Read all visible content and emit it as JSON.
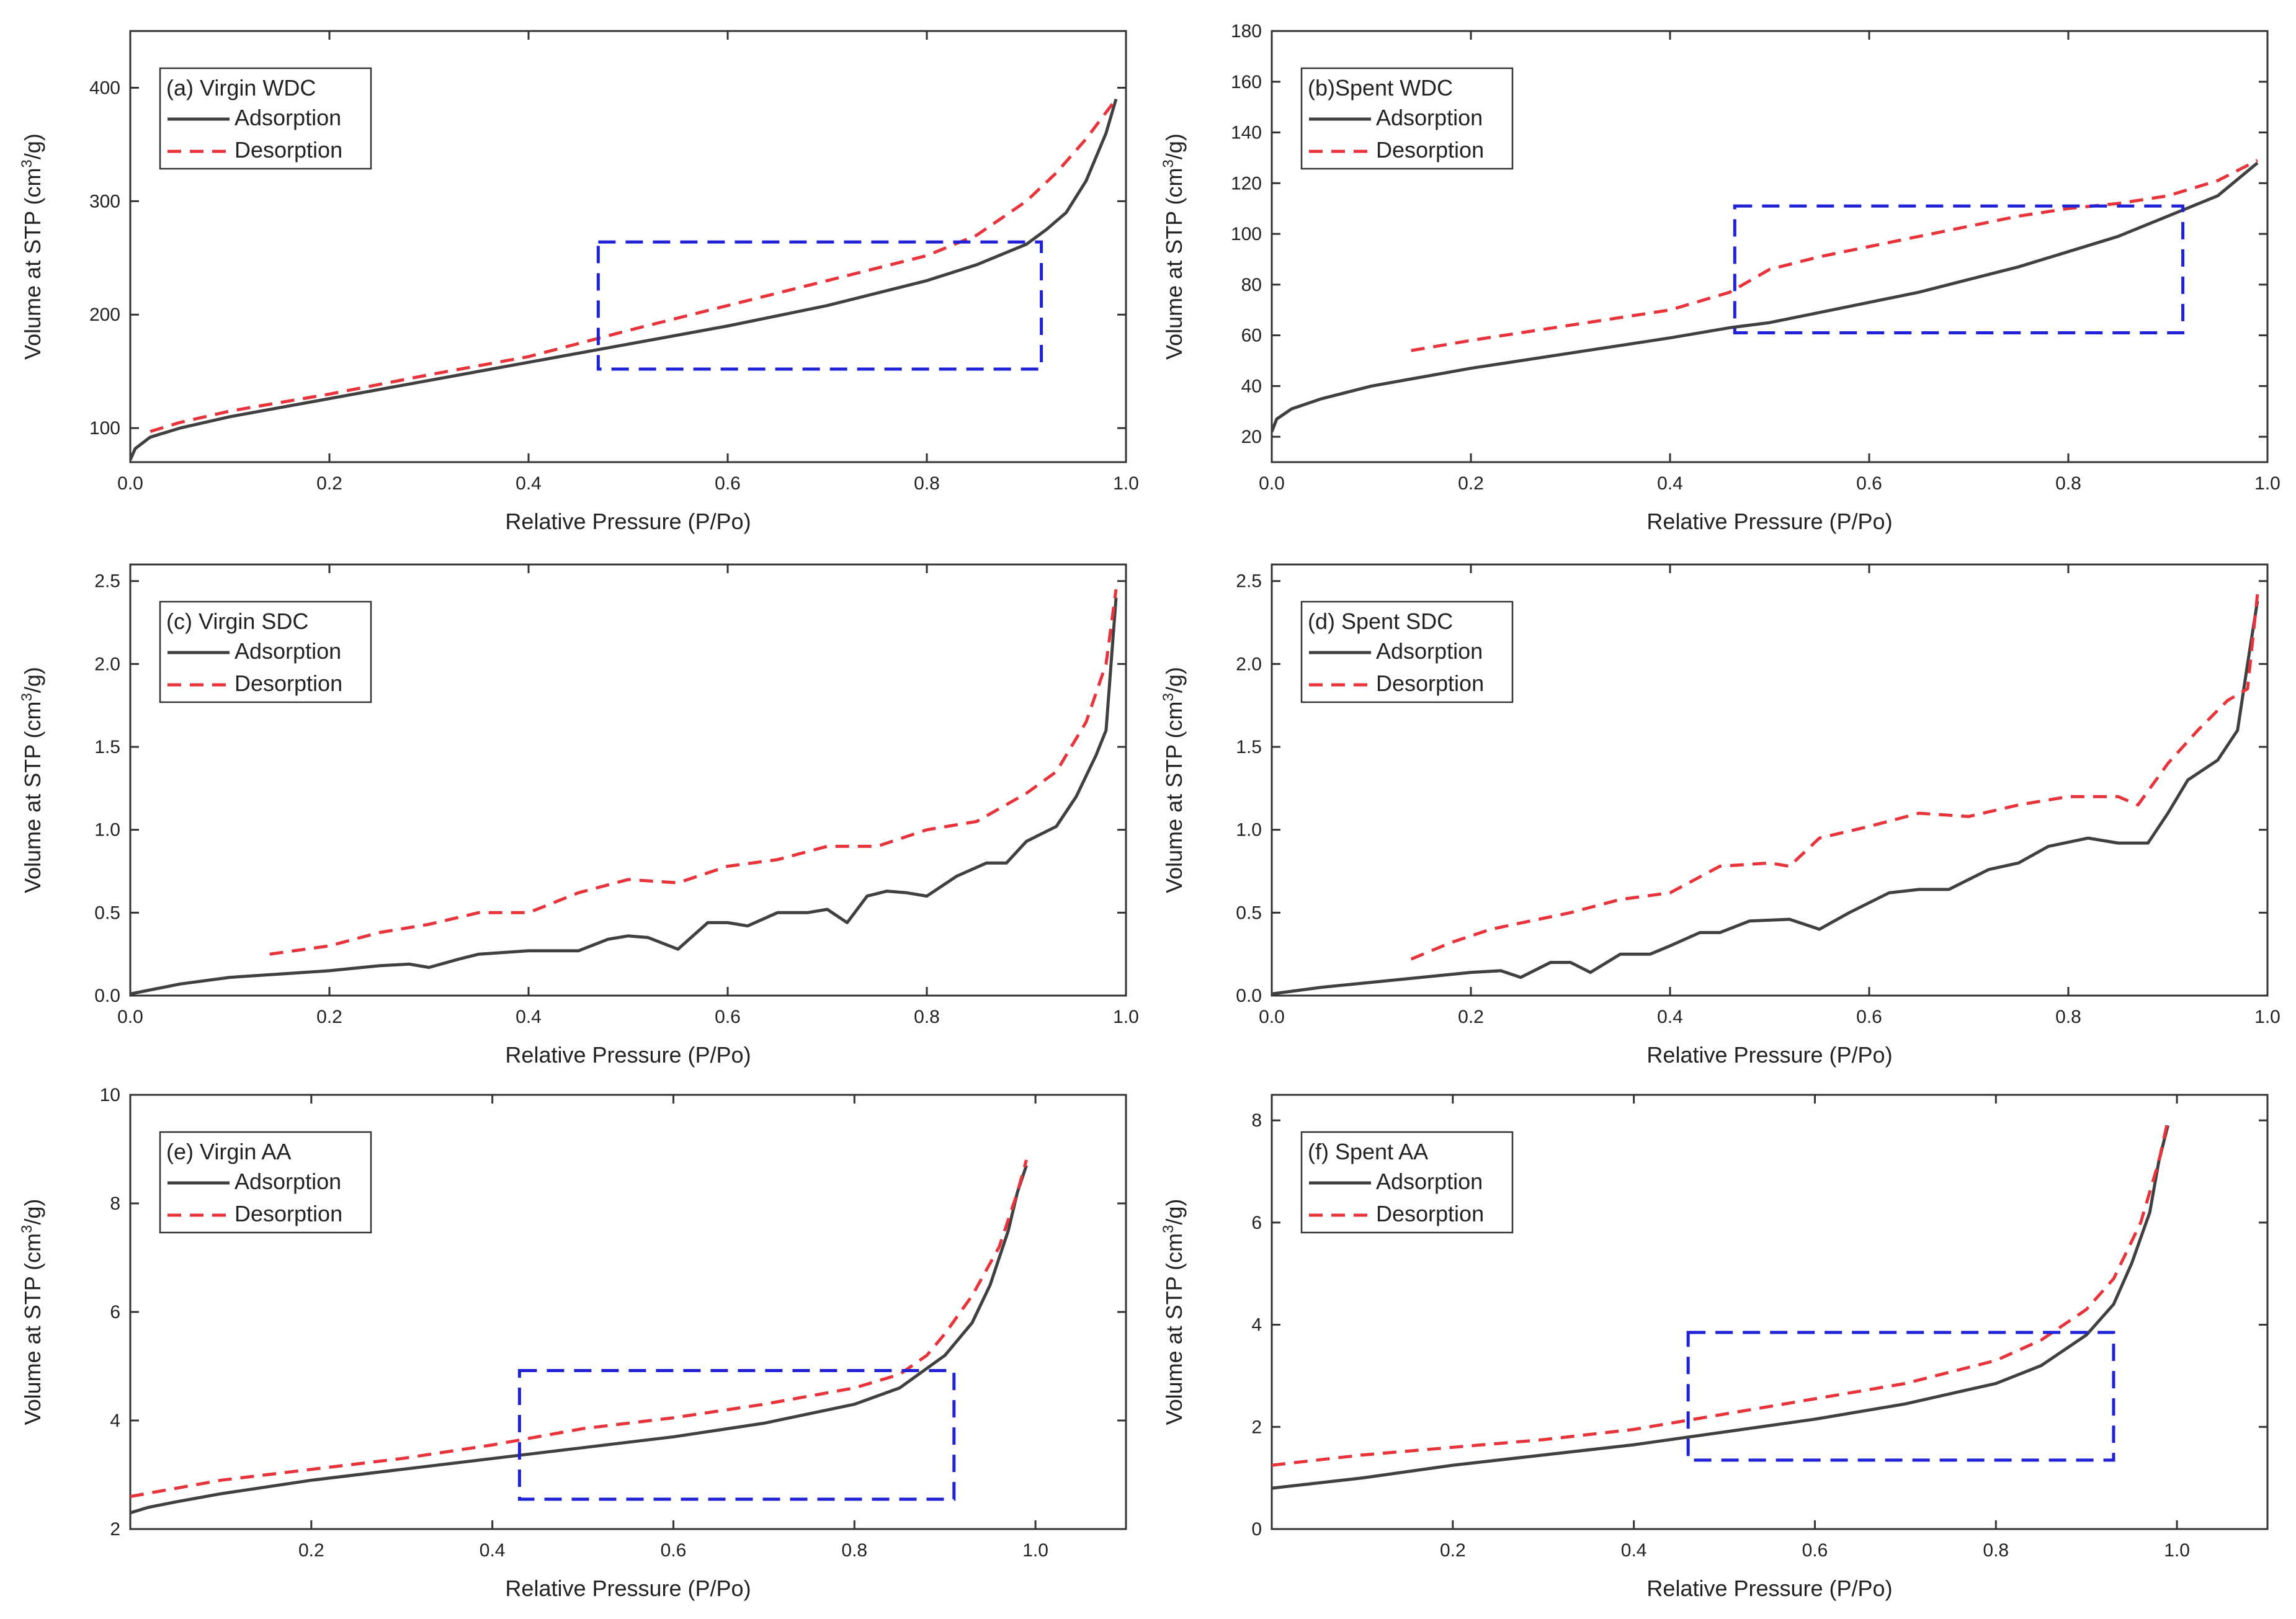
{
  "colors": {
    "adsorption": "#404040",
    "desorption": "#e8333a",
    "highlight_box": "#1f22d6",
    "axis": "#333333"
  },
  "chart_data": [
    {
      "type": "line",
      "panel": "a",
      "title": "(a) Virgin WDC",
      "xlabel": "Relative Pressure (P/Po)",
      "ylabel": "Volume at STP (cm3/g)",
      "ylabel_main": "Volume at STP (cm",
      "ylabel_sup": "3",
      "ylabel_tail": "/g)",
      "xlim": [
        0,
        1.0
      ],
      "ylim": [
        70,
        450
      ],
      "xticks": [
        0.0,
        0.2,
        0.4,
        0.6,
        0.8,
        1.0
      ],
      "xtick_labels": [
        "0.0",
        "0.2",
        "0.4",
        "0.6",
        "0.8",
        "1.0"
      ],
      "yticks": [
        100,
        200,
        300,
        400
      ],
      "ytick_labels": [
        "100",
        "200",
        "300",
        "400"
      ],
      "legend_position": "top-left",
      "series": [
        {
          "name": "Adsorption",
          "style": "solid",
          "x": [
            0,
            0.005,
            0.02,
            0.05,
            0.1,
            0.2,
            0.3,
            0.4,
            0.5,
            0.6,
            0.7,
            0.8,
            0.85,
            0.9,
            0.92,
            0.94,
            0.96,
            0.98,
            0.99
          ],
          "y": [
            72,
            82,
            92,
            100,
            110,
            126,
            142,
            158,
            174,
            190,
            208,
            230,
            244,
            262,
            275,
            290,
            318,
            360,
            390
          ]
        },
        {
          "name": "Desorption",
          "style": "dashed",
          "x": [
            0.02,
            0.05,
            0.1,
            0.2,
            0.3,
            0.4,
            0.5,
            0.6,
            0.7,
            0.8,
            0.85,
            0.88,
            0.9,
            0.93,
            0.96,
            0.99
          ],
          "y": [
            97,
            105,
            115,
            130,
            147,
            163,
            186,
            208,
            230,
            252,
            270,
            288,
            300,
            325,
            355,
            390
          ]
        }
      ],
      "annotation_box": {
        "x": [
          0.47,
          0.915
        ],
        "y": [
          152,
          264
        ]
      }
    },
    {
      "type": "line",
      "panel": "b",
      "title": "(b)Spent WDC",
      "xlabel": "Relative Pressure (P/Po)",
      "ylabel": "Volume at STP (cm3/g)",
      "ylabel_main": "Volume at STP (cm",
      "ylabel_sup": "3",
      "ylabel_tail": "/g)",
      "xlim": [
        0,
        1.0
      ],
      "ylim": [
        10,
        180
      ],
      "xticks": [
        0.0,
        0.2,
        0.4,
        0.6,
        0.8,
        1.0
      ],
      "xtick_labels": [
        "0.0",
        "0.2",
        "0.4",
        "0.6",
        "0.8",
        "1.0"
      ],
      "yticks": [
        20,
        40,
        60,
        80,
        100,
        120,
        140,
        160,
        180
      ],
      "ytick_labels": [
        "20",
        "40",
        "60",
        "80",
        "100",
        "120",
        "140",
        "160",
        "180"
      ],
      "legend_position": "top-left",
      "series": [
        {
          "name": "Adsorption",
          "style": "solid",
          "x": [
            0,
            0.005,
            0.02,
            0.05,
            0.1,
            0.2,
            0.3,
            0.4,
            0.46,
            0.5,
            0.55,
            0.6,
            0.65,
            0.7,
            0.75,
            0.8,
            0.85,
            0.9,
            0.95,
            0.99
          ],
          "y": [
            22,
            27,
            31,
            35,
            40,
            47,
            53,
            59,
            63,
            65,
            69,
            73,
            77,
            82,
            87,
            93,
            99,
            107,
            115,
            128
          ]
        },
        {
          "name": "Desorption",
          "style": "dashed",
          "x": [
            0.14,
            0.2,
            0.3,
            0.4,
            0.46,
            0.5,
            0.55,
            0.6,
            0.65,
            0.7,
            0.75,
            0.8,
            0.85,
            0.9,
            0.95,
            0.99
          ],
          "y": [
            54,
            58,
            64,
            70,
            77,
            86,
            91,
            95,
            99,
            103,
            107,
            110,
            112,
            115,
            121,
            129
          ]
        }
      ],
      "annotation_box": {
        "x": [
          0.465,
          0.915
        ],
        "y": [
          61,
          111
        ]
      }
    },
    {
      "type": "line",
      "panel": "c",
      "title": "(c) Virgin SDC",
      "xlabel": "Relative Pressure (P/Po)",
      "ylabel": "Volume at STP (cm3/g)",
      "ylabel_main": "Volume at STP (cm",
      "ylabel_sup": "3",
      "ylabel_tail": "/g)",
      "xlim": [
        0,
        1.0
      ],
      "ylim": [
        0,
        2.6
      ],
      "xticks": [
        0.0,
        0.2,
        0.4,
        0.6,
        0.8,
        1.0
      ],
      "xtick_labels": [
        "0.0",
        "0.2",
        "0.4",
        "0.6",
        "0.8",
        "1.0"
      ],
      "yticks": [
        0.0,
        0.5,
        1.0,
        1.5,
        2.0,
        2.5
      ],
      "ytick_labels": [
        "0.0",
        "0.5",
        "1.0",
        "1.5",
        "2.0",
        "2.5"
      ],
      "legend_position": "top-left",
      "series": [
        {
          "name": "Adsorption",
          "style": "solid",
          "x": [
            0,
            0.05,
            0.1,
            0.15,
            0.2,
            0.25,
            0.28,
            0.3,
            0.33,
            0.35,
            0.4,
            0.45,
            0.48,
            0.5,
            0.52,
            0.55,
            0.58,
            0.6,
            0.62,
            0.65,
            0.68,
            0.7,
            0.72,
            0.74,
            0.76,
            0.78,
            0.8,
            0.83,
            0.86,
            0.88,
            0.9,
            0.93,
            0.95,
            0.97,
            0.98,
            0.99
          ],
          "y": [
            0.01,
            0.07,
            0.11,
            0.13,
            0.15,
            0.18,
            0.19,
            0.17,
            0.22,
            0.25,
            0.27,
            0.27,
            0.34,
            0.36,
            0.35,
            0.28,
            0.44,
            0.44,
            0.42,
            0.5,
            0.5,
            0.52,
            0.44,
            0.6,
            0.63,
            0.62,
            0.6,
            0.72,
            0.8,
            0.8,
            0.93,
            1.02,
            1.2,
            1.45,
            1.6,
            2.4
          ]
        },
        {
          "name": "Desorption",
          "style": "dashed",
          "x": [
            0.14,
            0.2,
            0.25,
            0.3,
            0.35,
            0.4,
            0.45,
            0.5,
            0.55,
            0.6,
            0.65,
            0.7,
            0.75,
            0.8,
            0.85,
            0.9,
            0.93,
            0.96,
            0.98,
            0.99
          ],
          "y": [
            0.25,
            0.3,
            0.38,
            0.43,
            0.5,
            0.5,
            0.62,
            0.7,
            0.68,
            0.78,
            0.82,
            0.9,
            0.9,
            1.0,
            1.05,
            1.22,
            1.35,
            1.65,
            2.0,
            2.45
          ]
        }
      ]
    },
    {
      "type": "line",
      "panel": "d",
      "title": "(d) Spent SDC",
      "xlabel": "Relative Pressure (P/Po)",
      "ylabel": "Volume at STP (cm3/g)",
      "ylabel_main": "Volume at STP (cm",
      "ylabel_sup": "3",
      "ylabel_tail": "/g)",
      "xlim": [
        0,
        1.0
      ],
      "ylim": [
        0,
        2.6
      ],
      "xticks": [
        0.0,
        0.2,
        0.4,
        0.6,
        0.8,
        1.0
      ],
      "xtick_labels": [
        "0.0",
        "0.2",
        "0.4",
        "0.6",
        "0.8",
        "1.0"
      ],
      "yticks": [
        0.0,
        0.5,
        1.0,
        1.5,
        2.0,
        2.5
      ],
      "ytick_labels": [
        "0.0",
        "0.5",
        "1.0",
        "1.5",
        "2.0",
        "2.5"
      ],
      "legend_position": "top-left",
      "series": [
        {
          "name": "Adsorption",
          "style": "solid",
          "x": [
            0,
            0.05,
            0.1,
            0.15,
            0.2,
            0.23,
            0.25,
            0.28,
            0.3,
            0.32,
            0.35,
            0.38,
            0.4,
            0.43,
            0.45,
            0.48,
            0.52,
            0.55,
            0.58,
            0.62,
            0.65,
            0.68,
            0.72,
            0.75,
            0.78,
            0.82,
            0.85,
            0.88,
            0.9,
            0.92,
            0.95,
            0.97,
            0.98,
            0.99
          ],
          "y": [
            0.01,
            0.05,
            0.08,
            0.11,
            0.14,
            0.15,
            0.11,
            0.2,
            0.2,
            0.14,
            0.25,
            0.25,
            0.3,
            0.38,
            0.38,
            0.45,
            0.46,
            0.4,
            0.5,
            0.62,
            0.64,
            0.64,
            0.76,
            0.8,
            0.9,
            0.95,
            0.92,
            0.92,
            1.1,
            1.3,
            1.42,
            1.6,
            2.0,
            2.38
          ]
        },
        {
          "name": "Desorption",
          "style": "dashed",
          "x": [
            0.14,
            0.18,
            0.22,
            0.26,
            0.3,
            0.35,
            0.4,
            0.45,
            0.5,
            0.52,
            0.55,
            0.6,
            0.65,
            0.7,
            0.75,
            0.8,
            0.85,
            0.87,
            0.9,
            0.93,
            0.96,
            0.98,
            0.99
          ],
          "y": [
            0.22,
            0.32,
            0.4,
            0.45,
            0.5,
            0.58,
            0.62,
            0.78,
            0.8,
            0.78,
            0.95,
            1.02,
            1.1,
            1.08,
            1.15,
            1.2,
            1.2,
            1.15,
            1.4,
            1.6,
            1.78,
            1.85,
            2.42
          ]
        }
      ]
    },
    {
      "type": "line",
      "panel": "e",
      "title": "(e) Virgin AA",
      "xlabel": "Relative Pressure (P/Po)",
      "ylabel": "Volume at STP (cm3/g)",
      "ylabel_main": "Volume at STP (cm",
      "ylabel_sup": "3",
      "ylabel_tail": "/g)",
      "xlim": [
        0,
        1.1
      ],
      "ylim": [
        2,
        10
      ],
      "xticks": [
        0.2,
        0.4,
        0.6,
        0.8,
        1.0
      ],
      "xtick_labels": [
        "0.2",
        "0.4",
        "0.6",
        "0.8",
        "1.0"
      ],
      "yticks": [
        2,
        4,
        6,
        8,
        10
      ],
      "ytick_labels": [
        "2",
        "4",
        "6",
        "8",
        "10"
      ],
      "legend_position": "top-left",
      "series": [
        {
          "name": "Adsorption",
          "style": "solid",
          "x": [
            0,
            0.02,
            0.05,
            0.1,
            0.2,
            0.3,
            0.4,
            0.5,
            0.6,
            0.7,
            0.8,
            0.85,
            0.9,
            0.93,
            0.95,
            0.97,
            0.98,
            0.99
          ],
          "y": [
            2.3,
            2.4,
            2.5,
            2.65,
            2.9,
            3.1,
            3.3,
            3.5,
            3.7,
            3.95,
            4.3,
            4.6,
            5.2,
            5.8,
            6.5,
            7.5,
            8.2,
            8.7
          ]
        },
        {
          "name": "Desorption",
          "style": "dashed",
          "x": [
            0,
            0.05,
            0.1,
            0.2,
            0.3,
            0.4,
            0.5,
            0.6,
            0.7,
            0.8,
            0.85,
            0.88,
            0.9,
            0.93,
            0.96,
            0.98,
            0.99
          ],
          "y": [
            2.6,
            2.75,
            2.9,
            3.1,
            3.3,
            3.55,
            3.85,
            4.05,
            4.3,
            4.6,
            4.85,
            5.2,
            5.6,
            6.3,
            7.2,
            8.2,
            8.8
          ]
        }
      ],
      "annotation_box": {
        "x": [
          0.43,
          0.91
        ],
        "y": [
          2.55,
          4.92
        ]
      }
    },
    {
      "type": "line",
      "panel": "f",
      "title": "(f) Spent AA",
      "xlabel": "Relative Pressure (P/Po)",
      "ylabel": "Volume at STP (cm3/g)",
      "ylabel_main": "Volume at STP (cm",
      "ylabel_sup": "3",
      "ylabel_tail": "/g)",
      "xlim": [
        0,
        1.1
      ],
      "ylim": [
        0,
        8.5
      ],
      "xticks": [
        0.2,
        0.4,
        0.6,
        0.8,
        1.0
      ],
      "xtick_labels": [
        "0.2",
        "0.4",
        "0.6",
        "0.8",
        "1.0"
      ],
      "yticks": [
        0,
        2,
        4,
        6,
        8
      ],
      "ytick_labels": [
        "0",
        "2",
        "4",
        "6",
        "8"
      ],
      "legend_position": "top-left",
      "series": [
        {
          "name": "Adsorption",
          "style": "solid",
          "x": [
            0,
            0.05,
            0.1,
            0.2,
            0.3,
            0.4,
            0.5,
            0.6,
            0.7,
            0.8,
            0.85,
            0.9,
            0.93,
            0.95,
            0.97,
            0.98,
            0.99
          ],
          "y": [
            0.8,
            0.9,
            1.0,
            1.25,
            1.45,
            1.65,
            1.9,
            2.15,
            2.45,
            2.85,
            3.2,
            3.8,
            4.4,
            5.2,
            6.2,
            7.2,
            7.9
          ]
        },
        {
          "name": "Desorption",
          "style": "dashed",
          "x": [
            0,
            0.05,
            0.1,
            0.2,
            0.3,
            0.4,
            0.5,
            0.6,
            0.7,
            0.8,
            0.85,
            0.9,
            0.93,
            0.96,
            0.98,
            0.99
          ],
          "y": [
            1.25,
            1.35,
            1.45,
            1.6,
            1.75,
            1.95,
            2.25,
            2.55,
            2.85,
            3.3,
            3.7,
            4.3,
            4.9,
            6.0,
            7.2,
            8.0
          ]
        }
      ],
      "annotation_box": {
        "x": [
          0.46,
          0.93
        ],
        "y": [
          1.35,
          3.85
        ]
      }
    }
  ]
}
